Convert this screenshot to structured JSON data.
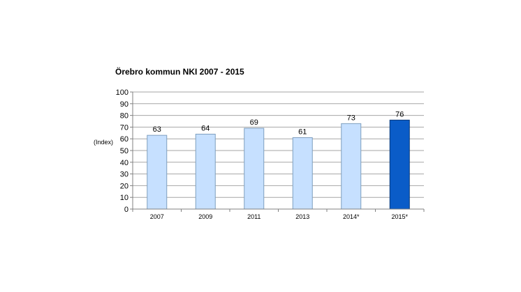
{
  "chart_data": {
    "type": "bar",
    "title": "Örebro kommun NKI 2007 - 2015",
    "ylabel": "(Index)",
    "xlabel": "",
    "categories": [
      "2007",
      "2009",
      "2011",
      "2013",
      "2014*",
      "2015*"
    ],
    "values": [
      63,
      64,
      69,
      61,
      73,
      76
    ],
    "data_labels": [
      "63",
      "64",
      "69",
      "61",
      "73",
      "76"
    ],
    "ylim": [
      0,
      100
    ],
    "yticks": [
      0,
      10,
      20,
      30,
      40,
      50,
      60,
      70,
      80,
      90,
      100
    ],
    "grid": true,
    "legend": "none",
    "colors": {
      "bar": "#c6e0ff",
      "bar_border": "#7f9fbf",
      "highlight_bar": "#0a5cc8",
      "highlight_border": "#06387a",
      "grid": "#a6a6a6",
      "axis": "#808080"
    },
    "highlight_index": 5
  }
}
